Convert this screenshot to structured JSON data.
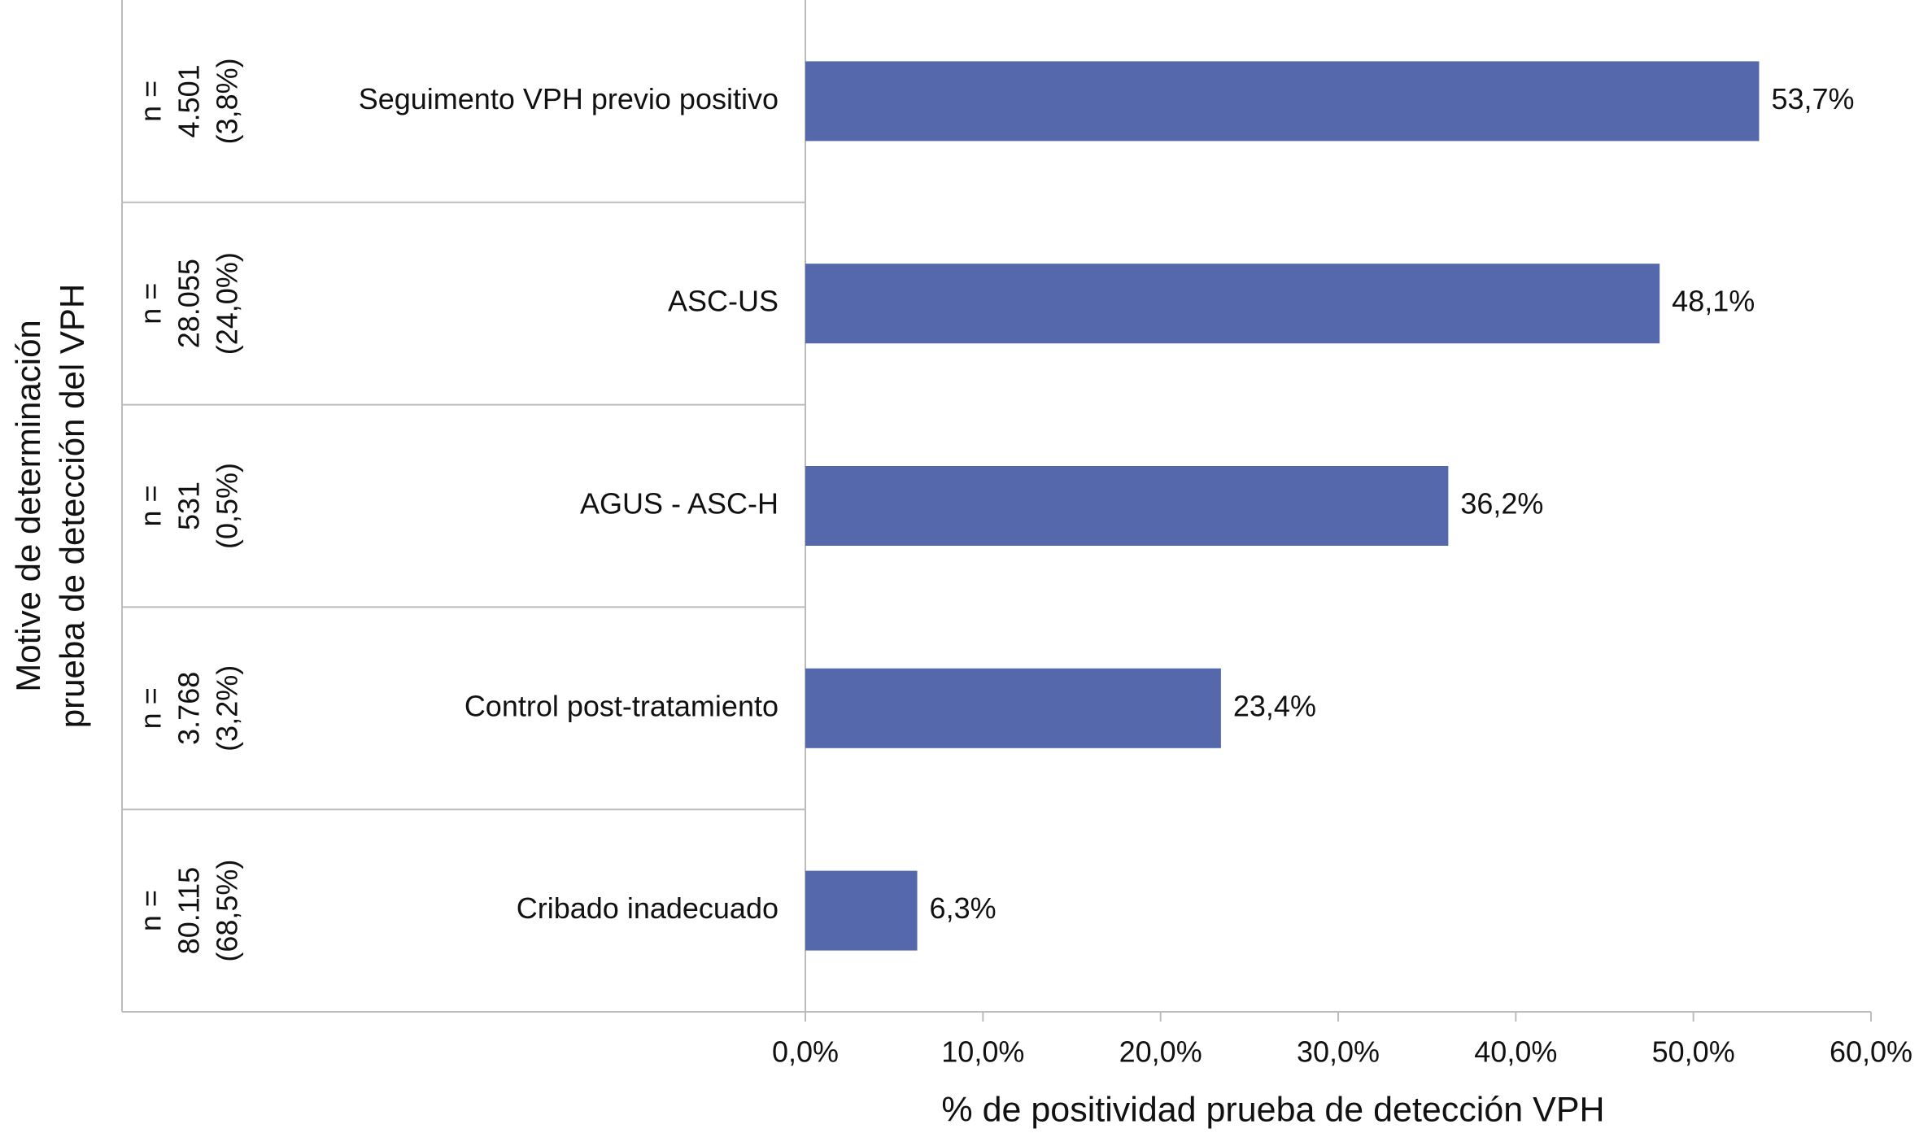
{
  "chart_data": {
    "type": "bar",
    "orientation": "horizontal",
    "y_axis_title": [
      "Motive de determinación",
      "prueba de detección del VPH"
    ],
    "x_axis_title": "% de positividad prueba de detección VPH",
    "categories": [
      "Seguimento VPH previo positivo",
      "ASC-US",
      "AGUS - ASC-H",
      "Control post-tratamiento",
      "Cribado inadecuado"
    ],
    "group_labels": [
      [
        "n =",
        "4.501",
        "(3,8%)"
      ],
      [
        "n =",
        "28.055",
        "(24,0%)"
      ],
      [
        "n =",
        "531",
        "(0,5%)"
      ],
      [
        "n =",
        "3.768",
        "(3,2%)"
      ],
      [
        "n =",
        "80.115",
        "(68,5%)"
      ]
    ],
    "values": [
      53.7,
      48.1,
      36.2,
      23.4,
      6.3
    ],
    "value_labels": [
      "53,7%",
      "48,1%",
      "36,2%",
      "23,4%",
      "6,3%"
    ],
    "color": "#5468ab",
    "xlim": [
      0,
      60
    ],
    "xticks": [
      {
        "value": 0,
        "label": "0,0%"
      },
      {
        "value": 10,
        "label": "10,0%"
      },
      {
        "value": 20,
        "label": "20,0%"
      },
      {
        "value": 30,
        "label": "30,0%"
      },
      {
        "value": 40,
        "label": "40,0%"
      },
      {
        "value": 50,
        "label": "50,0%"
      },
      {
        "value": 60,
        "label": "60,0%"
      }
    ]
  }
}
